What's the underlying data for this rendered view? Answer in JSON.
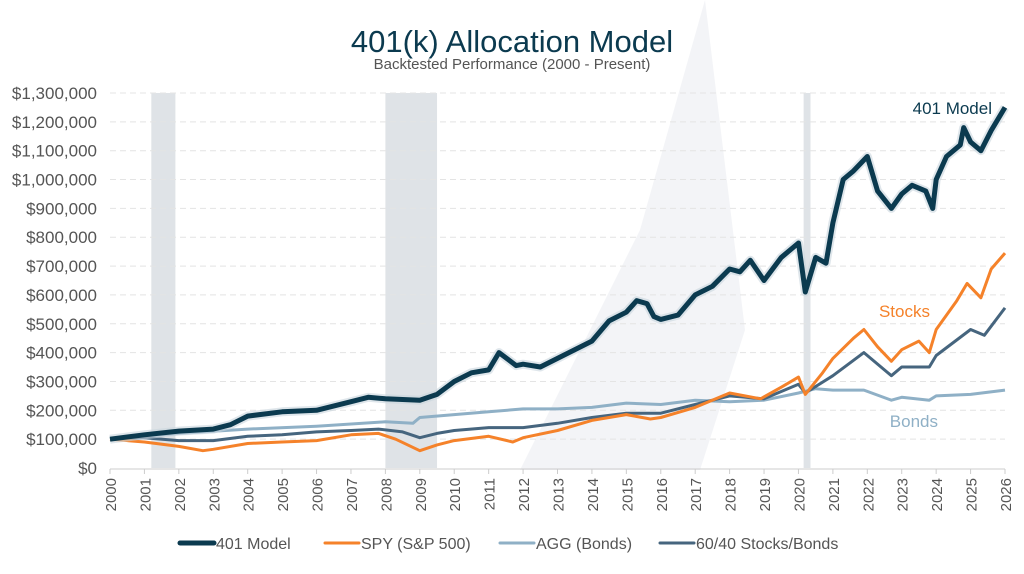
{
  "chart_data": {
    "type": "line",
    "title": "401(k) Allocation Model",
    "subtitle": "Backtested Performance (2000 - Present)",
    "xlabel": "",
    "ylabel": "",
    "xlim": [
      2000,
      2026
    ],
    "ylim": [
      0,
      1300000
    ],
    "x_ticks": [
      "2000",
      "2001",
      "2002",
      "2003",
      "2004",
      "2005",
      "2006",
      "2007",
      "2008",
      "2009",
      "2010",
      "2011",
      "2012",
      "2013",
      "2014",
      "2015",
      "2016",
      "2017",
      "2018",
      "2019",
      "2020",
      "2021",
      "2022",
      "2023",
      "2024",
      "2025",
      "2026"
    ],
    "y_ticks": [
      "$0",
      "$100,000",
      "$200,000",
      "$300,000",
      "$400,000",
      "$500,000",
      "$600,000",
      "$700,000",
      "$800,000",
      "$900,000",
      "$1,000,000",
      "$1,100,000",
      "$1,200,000",
      "$1,300,000"
    ],
    "grid": "horizontal dashed",
    "legend_position": "bottom",
    "shaded_periods": [
      [
        2001.2,
        2001.9
      ],
      [
        2008.0,
        2009.5
      ],
      [
        2020.15,
        2020.35
      ]
    ],
    "annotations": [
      {
        "text": "401 Model",
        "series": "401 Model",
        "color": "#0b3a4f"
      },
      {
        "text": "Stocks",
        "series": "SPY (S&P 500)",
        "color": "#f5822a"
      },
      {
        "text": "Bonds",
        "series": "AGG (Bonds)",
        "color": "#8fb0c6"
      }
    ],
    "series": [
      {
        "name": "401 Model",
        "color": "#0b3a4f",
        "x": [
          2000,
          2001,
          2002,
          2003,
          2003.5,
          2004,
          2005,
          2006,
          2007,
          2007.5,
          2008,
          2009,
          2009.5,
          2010,
          2010.5,
          2011,
          2011.3,
          2011.8,
          2012,
          2012.5,
          2013,
          2014,
          2014.5,
          2015,
          2015.3,
          2015.6,
          2015.8,
          2016,
          2016.5,
          2017,
          2017.5,
          2018,
          2018.3,
          2018.6,
          2019,
          2019.5,
          2020,
          2020.2,
          2020.5,
          2020.8,
          2021,
          2021.3,
          2021.6,
          2022,
          2022.3,
          2022.7,
          2023,
          2023.3,
          2023.7,
          2023.9,
          2024,
          2024.3,
          2024.7,
          2024.8,
          2025,
          2025.3,
          2025.6,
          2026
        ],
        "values": [
          100000,
          115000,
          128000,
          135000,
          150000,
          180000,
          195000,
          200000,
          230000,
          245000,
          240000,
          235000,
          255000,
          300000,
          330000,
          340000,
          400000,
          355000,
          360000,
          350000,
          380000,
          440000,
          510000,
          540000,
          580000,
          570000,
          525000,
          515000,
          530000,
          600000,
          630000,
          690000,
          680000,
          720000,
          650000,
          730000,
          780000,
          610000,
          730000,
          710000,
          850000,
          1000000,
          1030000,
          1080000,
          960000,
          900000,
          950000,
          980000,
          960000,
          900000,
          1000000,
          1080000,
          1120000,
          1180000,
          1130000,
          1100000,
          1170000,
          1250000
        ]
      },
      {
        "name": "SPY (S&P 500)",
        "color": "#f5822a",
        "x": [
          2000,
          2001,
          2002,
          2002.7,
          2003,
          2004,
          2005,
          2006,
          2007,
          2007.8,
          2008.3,
          2009,
          2009.5,
          2010,
          2011,
          2011.7,
          2012,
          2013,
          2014,
          2015,
          2015.7,
          2016,
          2017,
          2018,
          2018.9,
          2019.5,
          2020,
          2020.2,
          2020.7,
          2021,
          2021.6,
          2021.9,
          2022.3,
          2022.7,
          2023,
          2023.5,
          2023.8,
          2024,
          2024.6,
          2024.9,
          2025.3,
          2025.6,
          2026
        ],
        "values": [
          100000,
          90000,
          75000,
          60000,
          65000,
          85000,
          90000,
          95000,
          115000,
          120000,
          100000,
          60000,
          80000,
          95000,
          110000,
          90000,
          105000,
          130000,
          165000,
          185000,
          170000,
          175000,
          210000,
          260000,
          240000,
          280000,
          315000,
          255000,
          330000,
          380000,
          450000,
          480000,
          420000,
          370000,
          410000,
          440000,
          400000,
          480000,
          580000,
          640000,
          590000,
          690000,
          745000
        ]
      },
      {
        "name": "AGG (Bonds)",
        "color": "#8fb0c6",
        "x": [
          2000,
          2002,
          2004,
          2006,
          2008,
          2008.8,
          2009,
          2011,
          2012,
          2013,
          2014,
          2015,
          2016,
          2017,
          2018,
          2019,
          2020,
          2020.5,
          2021,
          2021.9,
          2022.7,
          2023,
          2023.8,
          2024,
          2025,
          2026
        ],
        "values": [
          100000,
          120000,
          135000,
          145000,
          160000,
          155000,
          175000,
          195000,
          205000,
          205000,
          210000,
          225000,
          220000,
          235000,
          230000,
          235000,
          260000,
          275000,
          270000,
          270000,
          235000,
          245000,
          235000,
          250000,
          255000,
          270000
        ]
      },
      {
        "name": "60/40 Stocks/Bonds",
        "color": "#46657e",
        "x": [
          2000,
          2001,
          2002,
          2003,
          2004,
          2005,
          2006,
          2007,
          2007.8,
          2008.5,
          2009,
          2009.5,
          2010,
          2011,
          2012,
          2013,
          2014,
          2015,
          2016,
          2017,
          2018,
          2019,
          2020,
          2020.2,
          2021,
          2021.9,
          2022.7,
          2023,
          2023.8,
          2024,
          2025,
          2025.4,
          2026
        ],
        "values": [
          100000,
          105000,
          95000,
          95000,
          110000,
          115000,
          125000,
          130000,
          135000,
          125000,
          105000,
          120000,
          130000,
          140000,
          140000,
          155000,
          175000,
          190000,
          190000,
          220000,
          250000,
          240000,
          290000,
          260000,
          320000,
          400000,
          320000,
          350000,
          350000,
          390000,
          480000,
          460000,
          555000
        ]
      }
    ]
  }
}
